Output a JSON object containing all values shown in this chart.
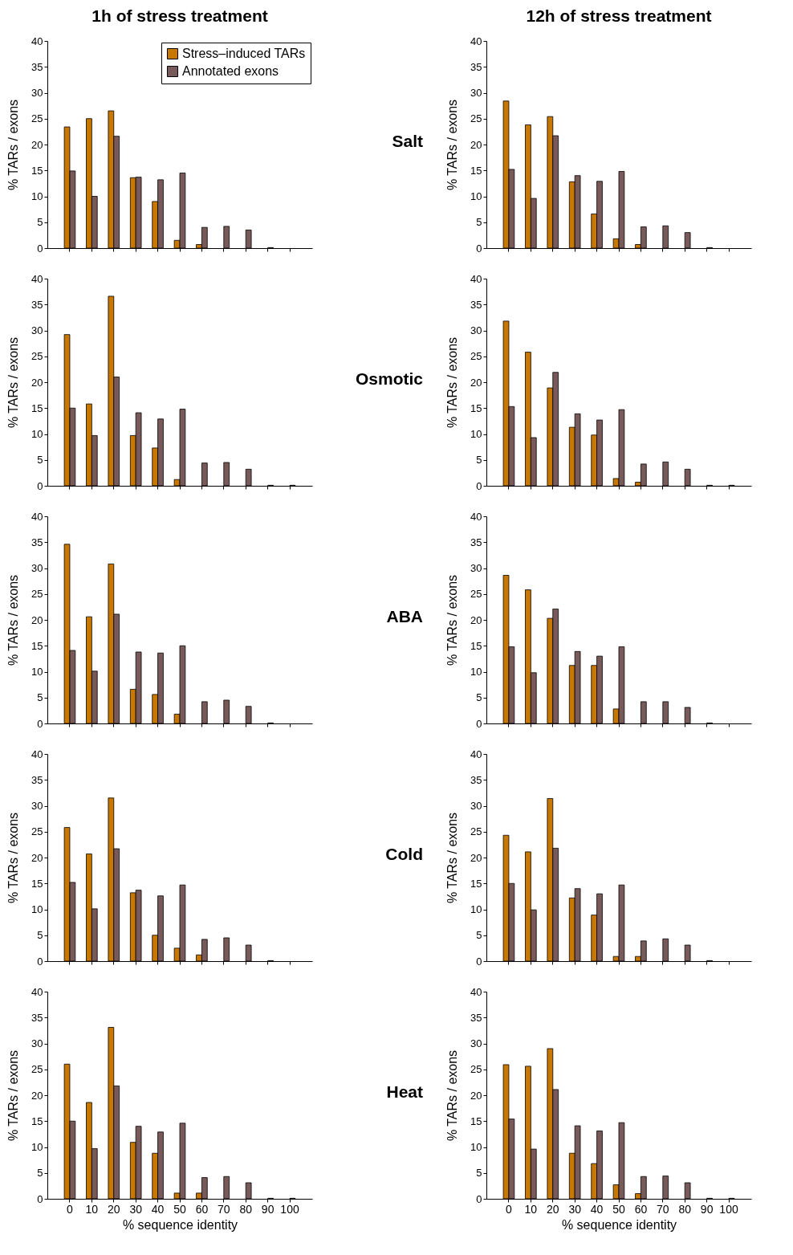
{
  "chart_data": [
    {
      "type": "bar",
      "title": "1h of stress treatment",
      "ylabel": "% TARs / exons",
      "annotations": [
        "Salt"
      ],
      "categories": [
        "0",
        "10",
        "20",
        "30",
        "40",
        "50",
        "60",
        "70",
        "80",
        "90",
        "100"
      ],
      "ylim": [
        0,
        40
      ],
      "yticks": [
        0,
        5,
        10,
        15,
        20,
        25,
        30,
        35,
        40
      ],
      "tick_labels": "y",
      "legend": "top right",
      "series": [
        {
          "name": "Stress–induced TARs",
          "color": "#c87800",
          "values": [
            23.4,
            25,
            26.5,
            13.6,
            9,
            1.5,
            0.7,
            0,
            0,
            0,
            0
          ]
        },
        {
          "name": "Annotated exons",
          "color": "#785a5a",
          "values": [
            14.9,
            10,
            21.6,
            13.7,
            13.2,
            14.5,
            4,
            4.2,
            3.5,
            0.1,
            0
          ]
        }
      ]
    },
    {
      "type": "bar",
      "title": "12h of stress treatment",
      "ylabel": "% TARs / exons",
      "categories": [
        "0",
        "10",
        "20",
        "30",
        "40",
        "50",
        "60",
        "70",
        "80",
        "90",
        "100"
      ],
      "ylim": [
        0,
        40
      ],
      "yticks": [
        0,
        5,
        10,
        15,
        20,
        25,
        30,
        35,
        40
      ],
      "tick_labels": "y",
      "series": [
        {
          "color": "#c87800",
          "values": [
            28.4,
            23.8,
            25.4,
            12.8,
            6.6,
            1.8,
            0.7,
            0,
            0,
            0,
            0
          ]
        },
        {
          "color": "#785a5a",
          "values": [
            15.2,
            9.6,
            21.7,
            14,
            12.9,
            14.8,
            4.1,
            4.3,
            3,
            0.1,
            0
          ]
        }
      ]
    },
    {
      "type": "bar",
      "ylabel": "% TARs / exons",
      "annotations": [
        "Osmotic"
      ],
      "categories": [
        "0",
        "10",
        "20",
        "30",
        "40",
        "50",
        "60",
        "70",
        "80",
        "90",
        "100"
      ],
      "ylim": [
        0,
        40
      ],
      "yticks": [
        0,
        5,
        10,
        15,
        20,
        25,
        30,
        35,
        40
      ],
      "tick_labels": "y",
      "series": [
        {
          "color": "#c87800",
          "values": [
            29.2,
            15.8,
            36.6,
            9.7,
            7.3,
            1.2,
            0,
            0,
            0,
            0,
            0
          ]
        },
        {
          "color": "#785a5a",
          "values": [
            15,
            9.7,
            21,
            14.1,
            12.9,
            14.8,
            4.4,
            4.5,
            3.2,
            0.1,
            0.1
          ]
        }
      ]
    },
    {
      "type": "bar",
      "ylabel": "% TARs / exons",
      "categories": [
        "0",
        "10",
        "20",
        "30",
        "40",
        "50",
        "60",
        "70",
        "80",
        "90",
        "100"
      ],
      "ylim": [
        0,
        40
      ],
      "yticks": [
        0,
        5,
        10,
        15,
        20,
        25,
        30,
        35,
        40
      ],
      "tick_labels": "y",
      "series": [
        {
          "color": "#c87800",
          "values": [
            31.8,
            25.8,
            18.9,
            11.3,
            9.8,
            1.4,
            0.7,
            0,
            0,
            0,
            0
          ]
        },
        {
          "color": "#785a5a",
          "values": [
            15.3,
            9.3,
            21.9,
            13.9,
            12.7,
            14.7,
            4.2,
            4.6,
            3.2,
            0.1,
            0.1
          ]
        }
      ]
    },
    {
      "type": "bar",
      "ylabel": "% TARs / exons",
      "annotations": [
        "ABA"
      ],
      "categories": [
        "0",
        "10",
        "20",
        "30",
        "40",
        "50",
        "60",
        "70",
        "80",
        "90",
        "100"
      ],
      "ylim": [
        0,
        40
      ],
      "yticks": [
        0,
        5,
        10,
        15,
        20,
        25,
        30,
        35,
        40
      ],
      "tick_labels": "y",
      "series": [
        {
          "color": "#c87800",
          "values": [
            34.6,
            20.6,
            30.8,
            6.6,
            5.6,
            1.8,
            0,
            0,
            0,
            0,
            0
          ]
        },
        {
          "color": "#785a5a",
          "values": [
            14.1,
            10.1,
            21.1,
            13.8,
            13.6,
            15,
            4.2,
            4.5,
            3.3,
            0.1,
            0
          ]
        }
      ]
    },
    {
      "type": "bar",
      "ylabel": "% TARs / exons",
      "categories": [
        "0",
        "10",
        "20",
        "30",
        "40",
        "50",
        "60",
        "70",
        "80",
        "90",
        "100"
      ],
      "ylim": [
        0,
        40
      ],
      "yticks": [
        0,
        5,
        10,
        15,
        20,
        25,
        30,
        35,
        40
      ],
      "tick_labels": "y",
      "series": [
        {
          "color": "#c87800",
          "values": [
            28.6,
            25.8,
            20.3,
            11.2,
            11.2,
            2.8,
            0,
            0,
            0,
            0,
            0
          ]
        },
        {
          "color": "#785a5a",
          "values": [
            14.8,
            9.8,
            22.1,
            13.9,
            13,
            14.8,
            4.2,
            4.2,
            3.1,
            0.1,
            0
          ]
        }
      ]
    },
    {
      "type": "bar",
      "ylabel": "% TARs / exons",
      "annotations": [
        "Cold"
      ],
      "categories": [
        "0",
        "10",
        "20",
        "30",
        "40",
        "50",
        "60",
        "70",
        "80",
        "90",
        "100"
      ],
      "ylim": [
        0,
        40
      ],
      "yticks": [
        0,
        5,
        10,
        15,
        20,
        25,
        30,
        35,
        40
      ],
      "tick_labels": "y",
      "series": [
        {
          "color": "#c87800",
          "values": [
            25.8,
            20.7,
            31.5,
            13.2,
            5,
            2.5,
            1.2,
            0,
            0,
            0,
            0
          ]
        },
        {
          "color": "#785a5a",
          "values": [
            15.2,
            10.1,
            21.7,
            13.7,
            12.6,
            14.7,
            4.2,
            4.5,
            3.1,
            0.1,
            0
          ]
        }
      ]
    },
    {
      "type": "bar",
      "ylabel": "% TARs / exons",
      "categories": [
        "0",
        "10",
        "20",
        "30",
        "40",
        "50",
        "60",
        "70",
        "80",
        "90",
        "100"
      ],
      "ylim": [
        0,
        40
      ],
      "yticks": [
        0,
        5,
        10,
        15,
        20,
        25,
        30,
        35,
        40
      ],
      "tick_labels": "y",
      "series": [
        {
          "color": "#c87800",
          "values": [
            24.3,
            21.1,
            31.4,
            12.2,
            8.9,
            0.9,
            0.9,
            0,
            0,
            0,
            0
          ]
        },
        {
          "color": "#785a5a",
          "values": [
            15,
            9.9,
            21.8,
            14,
            13,
            14.7,
            3.9,
            4.3,
            3.1,
            0.1,
            0
          ]
        }
      ]
    },
    {
      "type": "bar",
      "xlabel": "% sequence identity",
      "ylabel": "% TARs / exons",
      "annotations": [
        "Heat"
      ],
      "categories": [
        "0",
        "10",
        "20",
        "30",
        "40",
        "50",
        "60",
        "70",
        "80",
        "90",
        "100"
      ],
      "ylim": [
        0,
        40
      ],
      "yticks": [
        0,
        5,
        10,
        15,
        20,
        25,
        30,
        35,
        40
      ],
      "series": [
        {
          "color": "#c87800",
          "values": [
            26,
            18.6,
            33.1,
            10.9,
            8.8,
            1.1,
            1.1,
            0,
            0,
            0,
            0
          ]
        },
        {
          "color": "#785a5a",
          "values": [
            15,
            9.7,
            21.8,
            14,
            12.9,
            14.6,
            4.1,
            4.3,
            3.1,
            0.1,
            0.1
          ]
        }
      ]
    },
    {
      "type": "bar",
      "xlabel": "% sequence identity",
      "ylabel": "% TARs / exons",
      "categories": [
        "0",
        "10",
        "20",
        "30",
        "40",
        "50",
        "60",
        "70",
        "80",
        "90",
        "100"
      ],
      "ylim": [
        0,
        40
      ],
      "yticks": [
        0,
        5,
        10,
        15,
        20,
        25,
        30,
        35,
        40
      ],
      "series": [
        {
          "color": "#c87800",
          "values": [
            25.9,
            25.6,
            29,
            8.8,
            6.8,
            2.7,
            1,
            0,
            0,
            0,
            0
          ]
        },
        {
          "color": "#785a5a",
          "values": [
            15.4,
            9.6,
            21.1,
            14.1,
            13.1,
            14.7,
            4.3,
            4.4,
            3.1,
            0.1,
            0.1
          ]
        }
      ]
    }
  ]
}
